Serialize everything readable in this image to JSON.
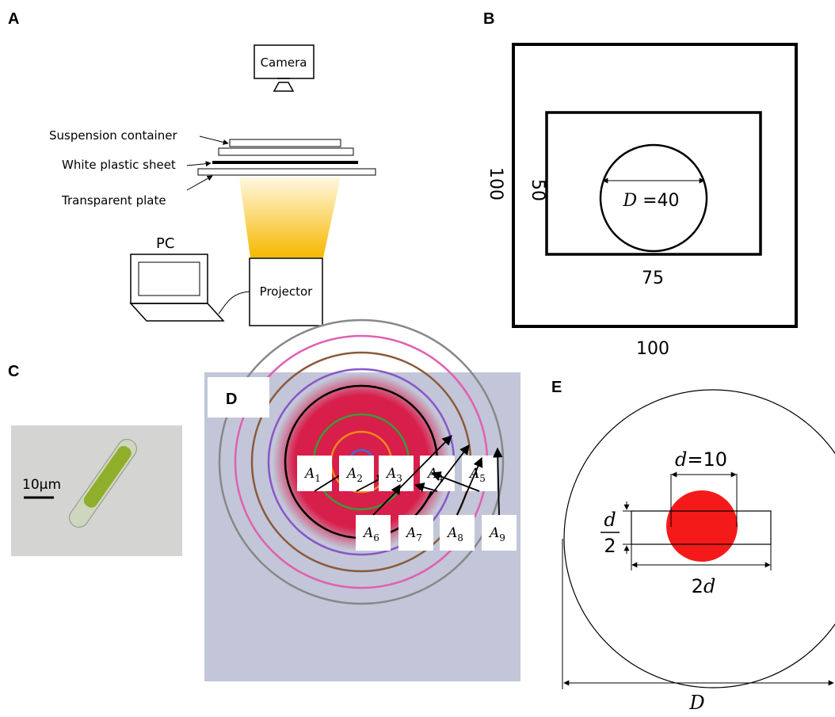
{
  "panel_a": {
    "label": "A",
    "camera": "Camera",
    "suspension_container": "Suspension container",
    "white_plastic_sheet": "White plastic sheet",
    "transparent_plate": "Transparent plate",
    "pc": "PC",
    "projector": "Projector"
  },
  "panel_b": {
    "label": "B",
    "outer_side": "100",
    "inner_height": "50",
    "circle": {
      "symbol": "D",
      "value": "=40"
    },
    "inner_width": "75",
    "outer_bottom": "100"
  },
  "panel_c": {
    "label": "C",
    "scale": "10µm"
  },
  "panel_d": {
    "label": "D",
    "regions": [
      {
        "symbol": "A",
        "sub": "1"
      },
      {
        "symbol": "A",
        "sub": "2"
      },
      {
        "symbol": "A",
        "sub": "3"
      },
      {
        "symbol": "A",
        "sub": "4"
      },
      {
        "symbol": "A",
        "sub": "5"
      },
      {
        "symbol": "A",
        "sub": "6"
      },
      {
        "symbol": "A",
        "sub": "7"
      },
      {
        "symbol": "A",
        "sub": "8"
      },
      {
        "symbol": "A",
        "sub": "9"
      }
    ]
  },
  "panel_e": {
    "label": "E",
    "small_diameter": {
      "symbol": "d",
      "value": "=10"
    },
    "height": {
      "numerator": "d",
      "denominator": "2"
    },
    "width": {
      "number": "2",
      "symbol": "d"
    },
    "big_diameter": "D"
  }
}
